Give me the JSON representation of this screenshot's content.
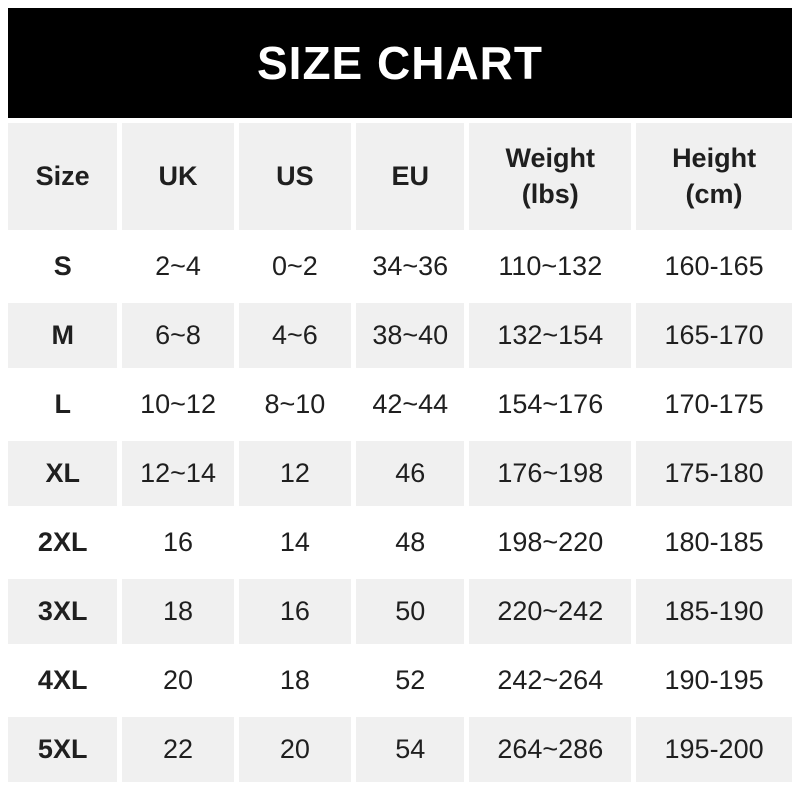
{
  "banner": {
    "title": "SIZE CHART"
  },
  "colors": {
    "banner_bg": "#000000",
    "banner_text": "#ffffff",
    "stripe_bg": "#f0f0f0",
    "row_bg": "#ffffff",
    "text": "#1f1f1f"
  },
  "table": {
    "columns": [
      {
        "label": "Size"
      },
      {
        "label": "UK"
      },
      {
        "label": "US"
      },
      {
        "label": "EU"
      },
      {
        "label": "Weight",
        "sub": "(lbs)"
      },
      {
        "label": "Height",
        "sub": "(cm)"
      }
    ],
    "rows": [
      {
        "size": "S",
        "uk": "2~4",
        "us": "0~2",
        "eu": "34~36",
        "weight": "110~132",
        "height": "160-165"
      },
      {
        "size": "M",
        "uk": "6~8",
        "us": "4~6",
        "eu": "38~40",
        "weight": "132~154",
        "height": "165-170"
      },
      {
        "size": "L",
        "uk": "10~12",
        "us": "8~10",
        "eu": "42~44",
        "weight": "154~176",
        "height": "170-175"
      },
      {
        "size": "XL",
        "uk": "12~14",
        "us": "12",
        "eu": "46",
        "weight": "176~198",
        "height": "175-180"
      },
      {
        "size": "2XL",
        "uk": "16",
        "us": "14",
        "eu": "48",
        "weight": "198~220",
        "height": "180-185"
      },
      {
        "size": "3XL",
        "uk": "18",
        "us": "16",
        "eu": "50",
        "weight": "220~242",
        "height": "185-190"
      },
      {
        "size": "4XL",
        "uk": "20",
        "us": "18",
        "eu": "52",
        "weight": "242~264",
        "height": "190-195"
      },
      {
        "size": "5XL",
        "uk": "22",
        "us": "20",
        "eu": "54",
        "weight": "264~286",
        "height": "195-200"
      }
    ]
  },
  "chart_data": {
    "type": "table",
    "title": "SIZE CHART",
    "columns": [
      "Size",
      "UK",
      "US",
      "EU",
      "Weight (lbs)",
      "Height (cm)"
    ],
    "rows": [
      [
        "S",
        "2~4",
        "0~2",
        "34~36",
        "110~132",
        "160-165"
      ],
      [
        "M",
        "6~8",
        "4~6",
        "38~40",
        "132~154",
        "165-170"
      ],
      [
        "L",
        "10~12",
        "8~10",
        "42~44",
        "154~176",
        "170-175"
      ],
      [
        "XL",
        "12~14",
        "12",
        "46",
        "176~198",
        "175-180"
      ],
      [
        "2XL",
        "16",
        "14",
        "48",
        "198~220",
        "180-185"
      ],
      [
        "3XL",
        "18",
        "16",
        "50",
        "220~242",
        "185-190"
      ],
      [
        "4XL",
        "20",
        "18",
        "52",
        "242~264",
        "190-195"
      ],
      [
        "5XL",
        "22",
        "20",
        "54",
        "264~286",
        "195-200"
      ]
    ]
  }
}
